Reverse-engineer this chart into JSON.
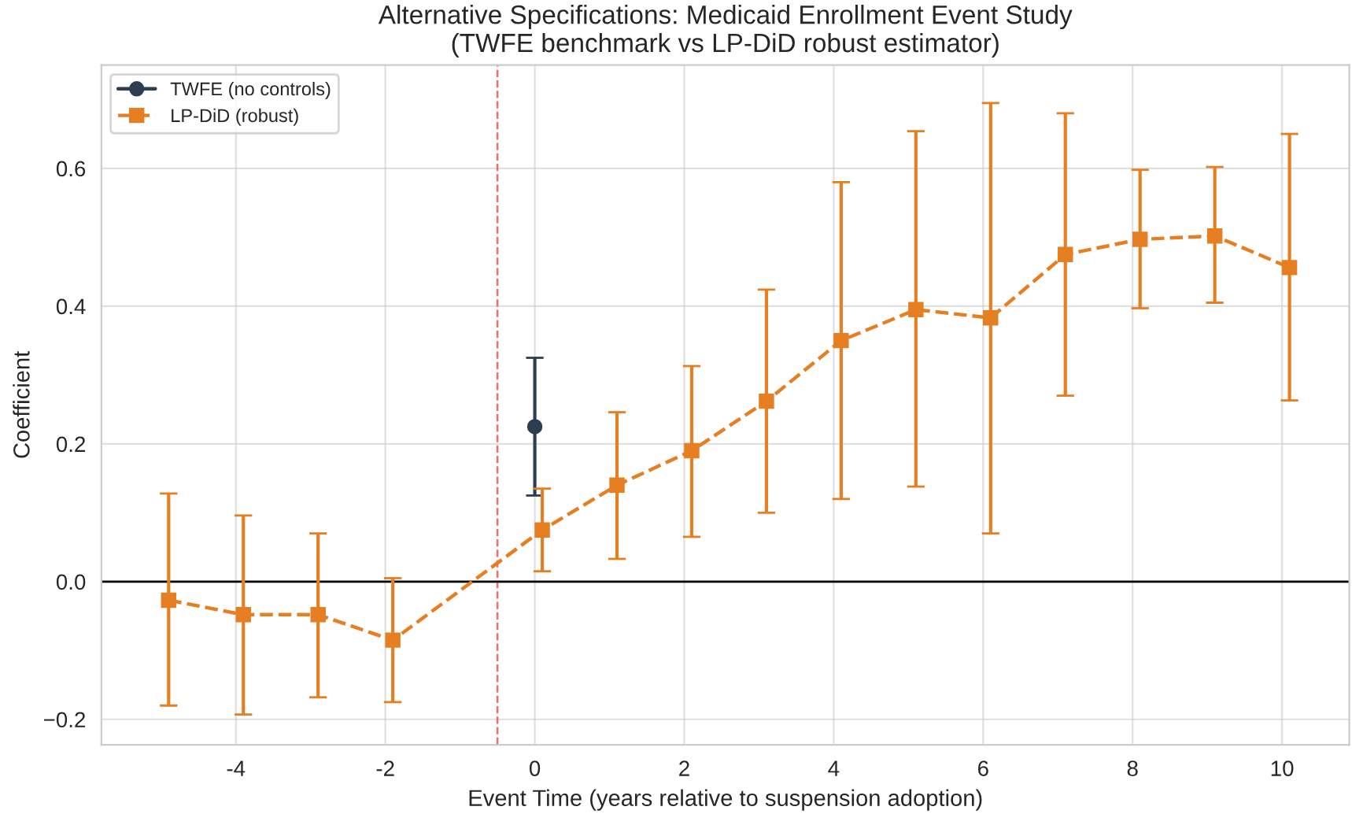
{
  "chart_data": {
    "type": "line",
    "title": "Alternative Specifications: Medicaid Enrollment Event Study\n(TWFE benchmark vs LP-DiD robust estimator)",
    "xlabel": "Event Time (years relative to suspension adoption)",
    "ylabel": "Coefficient",
    "xlim": [
      -5.8,
      10.9
    ],
    "xticks": [
      -4,
      -2,
      0,
      2,
      4,
      6,
      8,
      10
    ],
    "ylim": [
      -0.237,
      0.75
    ],
    "yticks": [
      {
        "value": -0.2,
        "label": "−0.2"
      },
      {
        "value": 0.0,
        "label": "0.0"
      },
      {
        "value": 0.2,
        "label": "0.2"
      },
      {
        "value": 0.4,
        "label": "0.4"
      },
      {
        "value": 0.6,
        "label": "0.6"
      }
    ],
    "grid": true,
    "legend": "top left",
    "ref_lines": [
      {
        "axis": "x",
        "value": -0.5,
        "color": "#e74c3c",
        "line_style": "dashed"
      },
      {
        "axis": "y",
        "value": 0,
        "color": "#000000",
        "line_style": "solid"
      }
    ],
    "series": [
      {
        "name": "TWFE (no controls)",
        "color": "#2c3e50",
        "marker": "circle",
        "line_style": "solid",
        "x": [
          0
        ],
        "values": [
          0.225
        ],
        "errors": [
          [
            0.125,
            0.325
          ]
        ]
      },
      {
        "name": "LP-DiD (robust)",
        "color": "#e67e22",
        "marker": "square",
        "line_style": "dashed",
        "x": [
          -4.9,
          -3.9,
          -2.9,
          -1.9,
          0.1,
          1.1,
          2.1,
          3.1,
          4.1,
          5.1,
          6.1,
          7.1,
          8.1,
          9.1,
          10.1
        ],
        "values": [
          -0.027,
          -0.048,
          -0.048,
          -0.085,
          0.075,
          0.14,
          0.19,
          0.262,
          0.35,
          0.395,
          0.383,
          0.475,
          0.497,
          0.502,
          0.456
        ],
        "errors": [
          [
            -0.18,
            0.128
          ],
          [
            -0.193,
            0.096
          ],
          [
            -0.168,
            0.07
          ],
          [
            -0.175,
            0.005
          ],
          [
            0.015,
            0.135
          ],
          [
            0.033,
            0.246
          ],
          [
            0.065,
            0.313
          ],
          [
            0.1,
            0.424
          ],
          [
            0.12,
            0.58
          ],
          [
            0.138,
            0.654
          ],
          [
            0.07,
            0.695
          ],
          [
            0.27,
            0.68
          ],
          [
            0.397,
            0.598
          ],
          [
            0.405,
            0.602
          ],
          [
            0.263,
            0.65
          ]
        ]
      }
    ]
  }
}
